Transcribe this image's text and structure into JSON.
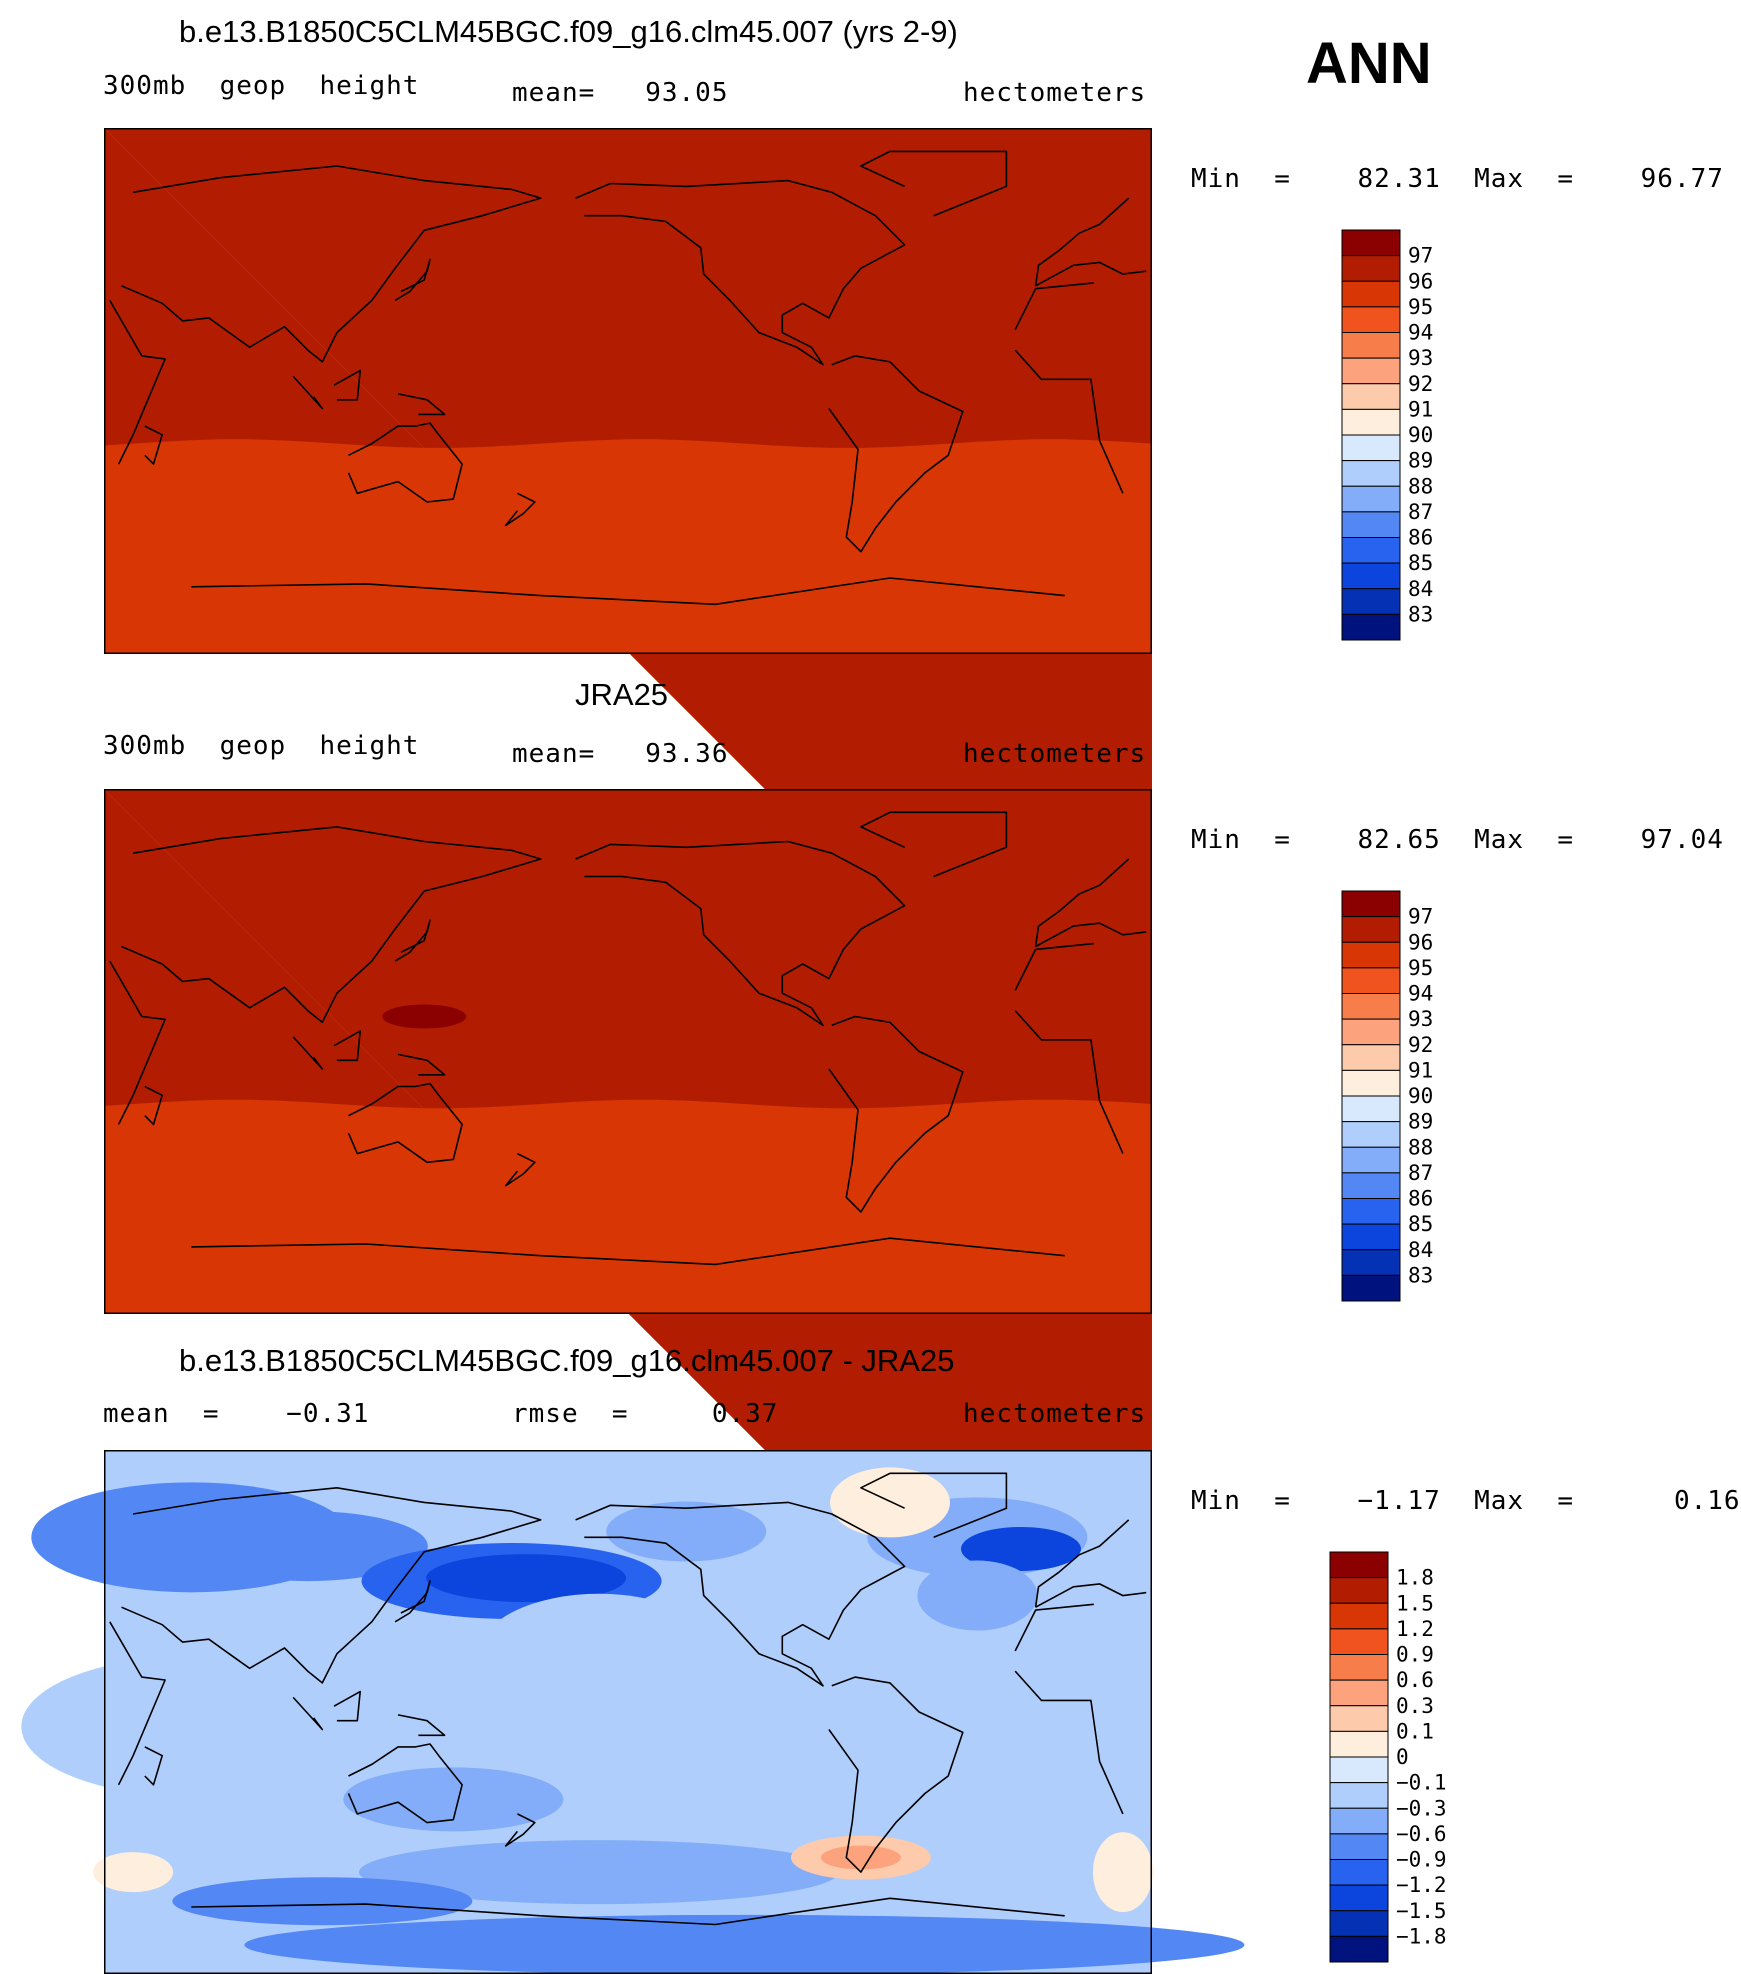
{
  "season": "ANN",
  "panels": [
    {
      "title": "b.e13.B1850C5CLM45BGC.f09_g16.clm45.007 (yrs 2-9)",
      "left": "300mb  geop  height",
      "center": "mean=   93.05",
      "right": "hectometers",
      "minmax": "Min  =    82.31  Max  =    96.77",
      "levels": [
        "97",
        "96",
        "95",
        "94",
        "93",
        "92",
        "91",
        "90",
        "89",
        "88",
        "87",
        "86",
        "85",
        "84",
        "83"
      ],
      "colors": [
        "#8b0000",
        "#b21d02",
        "#d83605",
        "#f0531e",
        "#f77d4b",
        "#fca37d",
        "#fdcbac",
        "#feeedd",
        "#d8e9fd",
        "#afcefc",
        "#83adf8",
        "#5388f4",
        "#2863f0",
        "#0c45dd",
        "#0532b4",
        "#00127e"
      ]
    },
    {
      "title": "JRA25",
      "left": "300mb  geop  height",
      "center": "mean=   93.36",
      "right": "hectometers",
      "minmax": "Min  =    82.65  Max  =    97.04",
      "levels": [
        "97",
        "96",
        "95",
        "94",
        "93",
        "92",
        "91",
        "90",
        "89",
        "88",
        "87",
        "86",
        "85",
        "84",
        "83"
      ],
      "colors": [
        "#8b0000",
        "#b21d02",
        "#d83605",
        "#f0531e",
        "#f77d4b",
        "#fca37d",
        "#fdcbac",
        "#feeedd",
        "#d8e9fd",
        "#afcefc",
        "#83adf8",
        "#5388f4",
        "#2863f0",
        "#0c45dd",
        "#0532b4",
        "#00127e"
      ]
    },
    {
      "title": "b.e13.B1850C5CLM45BGC.f09_g16.clm45.007 - JRA25",
      "left": "mean  =    −0.31",
      "center": "rmse  =     0.37",
      "right": "hectometers",
      "minmax": "Min  =    −1.17  Max  =      0.16",
      "levels": [
        "1.8",
        "1.5",
        "1.2",
        "0.9",
        "0.6",
        "0.3",
        "0.1",
        "0",
        "−0.1",
        "−0.3",
        "−0.6",
        "−0.9",
        "−1.2",
        "−1.5",
        "−1.8"
      ],
      "colors": [
        "#8b0000",
        "#b21d02",
        "#d83605",
        "#f0531e",
        "#f77d4b",
        "#fca37d",
        "#fdcbac",
        "#feeedd",
        "#d8e9fd",
        "#afcefc",
        "#83adf8",
        "#5388f4",
        "#2863f0",
        "#0c45dd",
        "#0532b4",
        "#00127e"
      ]
    }
  ]
}
